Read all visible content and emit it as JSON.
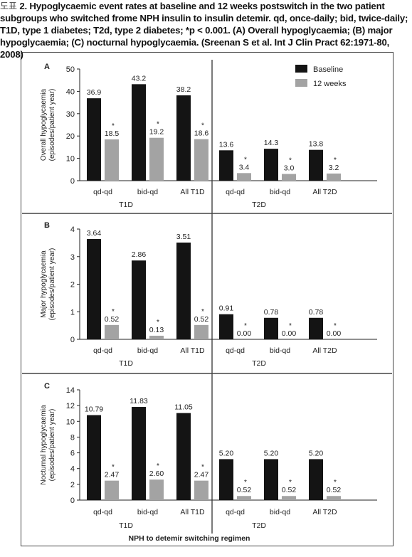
{
  "caption": {
    "lead": "도표",
    "text": "2. Hypoglycaemic event rates at baseline and 12 weeks postswitch in the two patient subgroups who switched frome NPH insulin to insulin detemir. qd, once-daily; bid, twice-daily; T1D, type 1 diabetes; T2d, type 2 diabetes; *p < 0.001. (A) Overall hypoglycaemia; (B) major hypoglycaemia; (C) nocturnal hypoglycaemia. (Sreenan S et al. Int J Clin Pract 62:1971-80, 2008)"
  },
  "legend": {
    "baseline": "Baseline",
    "weeks12": "12 weeks"
  },
  "colors": {
    "baseline": "#141414",
    "weeks12": "#a3a3a3"
  },
  "significance_marker": "*",
  "xlabel": "NPH to detemir switching regimen",
  "chart_data": [
    {
      "panel": "A",
      "type": "bar",
      "ylabel": [
        "Overall hypoglycaemia",
        "(episodes/patient year)"
      ],
      "ylim": [
        0,
        50
      ],
      "yticks": [
        0,
        10,
        20,
        30,
        40,
        50
      ],
      "categories": [
        "qd-qd",
        "bid-qd",
        "All T1D",
        "qd-qd",
        "bid-qd",
        "All T2D"
      ],
      "groups": [
        "T1D",
        "T2D"
      ],
      "series": [
        {
          "name": "Baseline",
          "values": [
            36.9,
            43.2,
            38.2,
            13.6,
            14.3,
            13.8
          ],
          "labels": [
            "36.9",
            "43.2",
            "38.2",
            "13.6",
            "14.3",
            "13.8"
          ]
        },
        {
          "name": "12 weeks",
          "values": [
            18.5,
            19.2,
            18.6,
            3.4,
            3.0,
            3.2
          ],
          "labels": [
            "18.5",
            "19.2",
            "18.6",
            "3.4",
            "3.0",
            "3.2"
          ]
        }
      ]
    },
    {
      "panel": "B",
      "type": "bar",
      "ylabel": [
        "Major hypoglycaemia",
        "(episodes/patient year)"
      ],
      "ylim": [
        0,
        4
      ],
      "yticks": [
        0,
        1,
        2,
        3,
        4
      ],
      "categories": [
        "qd-qd",
        "bid-qd",
        "All T1D",
        "qd-qd",
        "bid-qd",
        "All T2D"
      ],
      "groups": [
        "T1D",
        "T2D"
      ],
      "series": [
        {
          "name": "Baseline",
          "values": [
            3.64,
            2.86,
            3.51,
            0.91,
            0.78,
            0.78
          ],
          "labels": [
            "3.64",
            "2.86",
            "3.51",
            "0.91",
            "0.78",
            "0.78"
          ]
        },
        {
          "name": "12 weeks",
          "values": [
            0.52,
            0.13,
            0.52,
            0.0,
            0.0,
            0.0
          ],
          "labels": [
            "0.52",
            "0.13",
            "0.52",
            "0.00",
            "0.00",
            "0.00"
          ]
        }
      ]
    },
    {
      "panel": "C",
      "type": "bar",
      "ylabel": [
        "Nocturnal hypoglycaemia",
        "(episodes/patient year)"
      ],
      "ylim": [
        0,
        14
      ],
      "yticks": [
        0,
        2,
        4,
        6,
        8,
        10,
        12,
        14
      ],
      "categories": [
        "qd-qd",
        "bid-qd",
        "All T1D",
        "qd-qd",
        "bid-qd",
        "All T2D"
      ],
      "groups": [
        "T1D",
        "T2D"
      ],
      "series": [
        {
          "name": "Baseline",
          "values": [
            10.79,
            11.83,
            11.05,
            5.2,
            5.2,
            5.2
          ],
          "labels": [
            "10.79",
            "11.83",
            "11.05",
            "5.20",
            "5.20",
            "5.20"
          ]
        },
        {
          "name": "12 weeks",
          "values": [
            2.47,
            2.6,
            2.47,
            0.52,
            0.52,
            0.52
          ],
          "labels": [
            "2.47",
            "2.60",
            "2.47",
            "0.52",
            "0.52",
            "0.52"
          ]
        }
      ]
    }
  ]
}
